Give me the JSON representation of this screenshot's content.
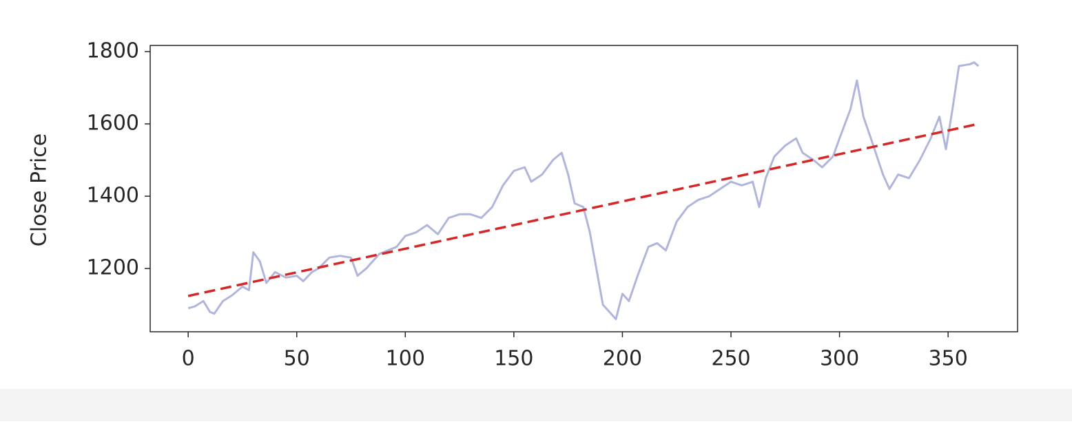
{
  "chart_data": {
    "type": "line",
    "ylabel": "Close Price",
    "xlim": [
      -17.5,
      382
    ],
    "ylim": [
      1025,
      1817
    ],
    "xticks": [
      0,
      50,
      100,
      150,
      200,
      250,
      300,
      350
    ],
    "yticks": [
      1200,
      1400,
      1600,
      1800
    ],
    "series": [
      {
        "color": "#b1b5dc",
        "style": "solid",
        "x": [
          0,
          3,
          7,
          10,
          12,
          16,
          20,
          25,
          28,
          30,
          33,
          36,
          40,
          45,
          50,
          53,
          57,
          60,
          65,
          70,
          75,
          78,
          82,
          88,
          92,
          96,
          100,
          105,
          110,
          115,
          120,
          125,
          130,
          135,
          140,
          145,
          150,
          155,
          158,
          163,
          168,
          172,
          175,
          178,
          182,
          185,
          188,
          191,
          194,
          197,
          200,
          203,
          207,
          212,
          216,
          220,
          225,
          230,
          235,
          240,
          245,
          250,
          255,
          260,
          263,
          266,
          270,
          275,
          280,
          283,
          288,
          292,
          297,
          300,
          305,
          308,
          311,
          315,
          320,
          323,
          327,
          332,
          337,
          342,
          346,
          349,
          352,
          355,
          360,
          362,
          364
        ],
        "values": [
          1090,
          1095,
          1110,
          1080,
          1075,
          1110,
          1125,
          1150,
          1140,
          1245,
          1220,
          1160,
          1190,
          1175,
          1180,
          1165,
          1190,
          1200,
          1230,
          1235,
          1230,
          1180,
          1200,
          1240,
          1250,
          1260,
          1290,
          1300,
          1320,
          1295,
          1340,
          1350,
          1350,
          1340,
          1370,
          1430,
          1470,
          1480,
          1440,
          1460,
          1500,
          1520,
          1460,
          1380,
          1370,
          1300,
          1200,
          1100,
          1080,
          1060,
          1130,
          1110,
          1180,
          1260,
          1270,
          1250,
          1330,
          1370,
          1390,
          1400,
          1420,
          1440,
          1430,
          1440,
          1370,
          1450,
          1510,
          1540,
          1560,
          1520,
          1500,
          1480,
          1510,
          1560,
          1640,
          1720,
          1620,
          1550,
          1460,
          1420,
          1460,
          1450,
          1500,
          1560,
          1620,
          1530,
          1640,
          1760,
          1765,
          1770,
          1760
        ]
      },
      {
        "color": "#d62728",
        "style": "dashed",
        "x": [
          0,
          364
        ],
        "values": [
          1124,
          1600
        ]
      }
    ]
  }
}
